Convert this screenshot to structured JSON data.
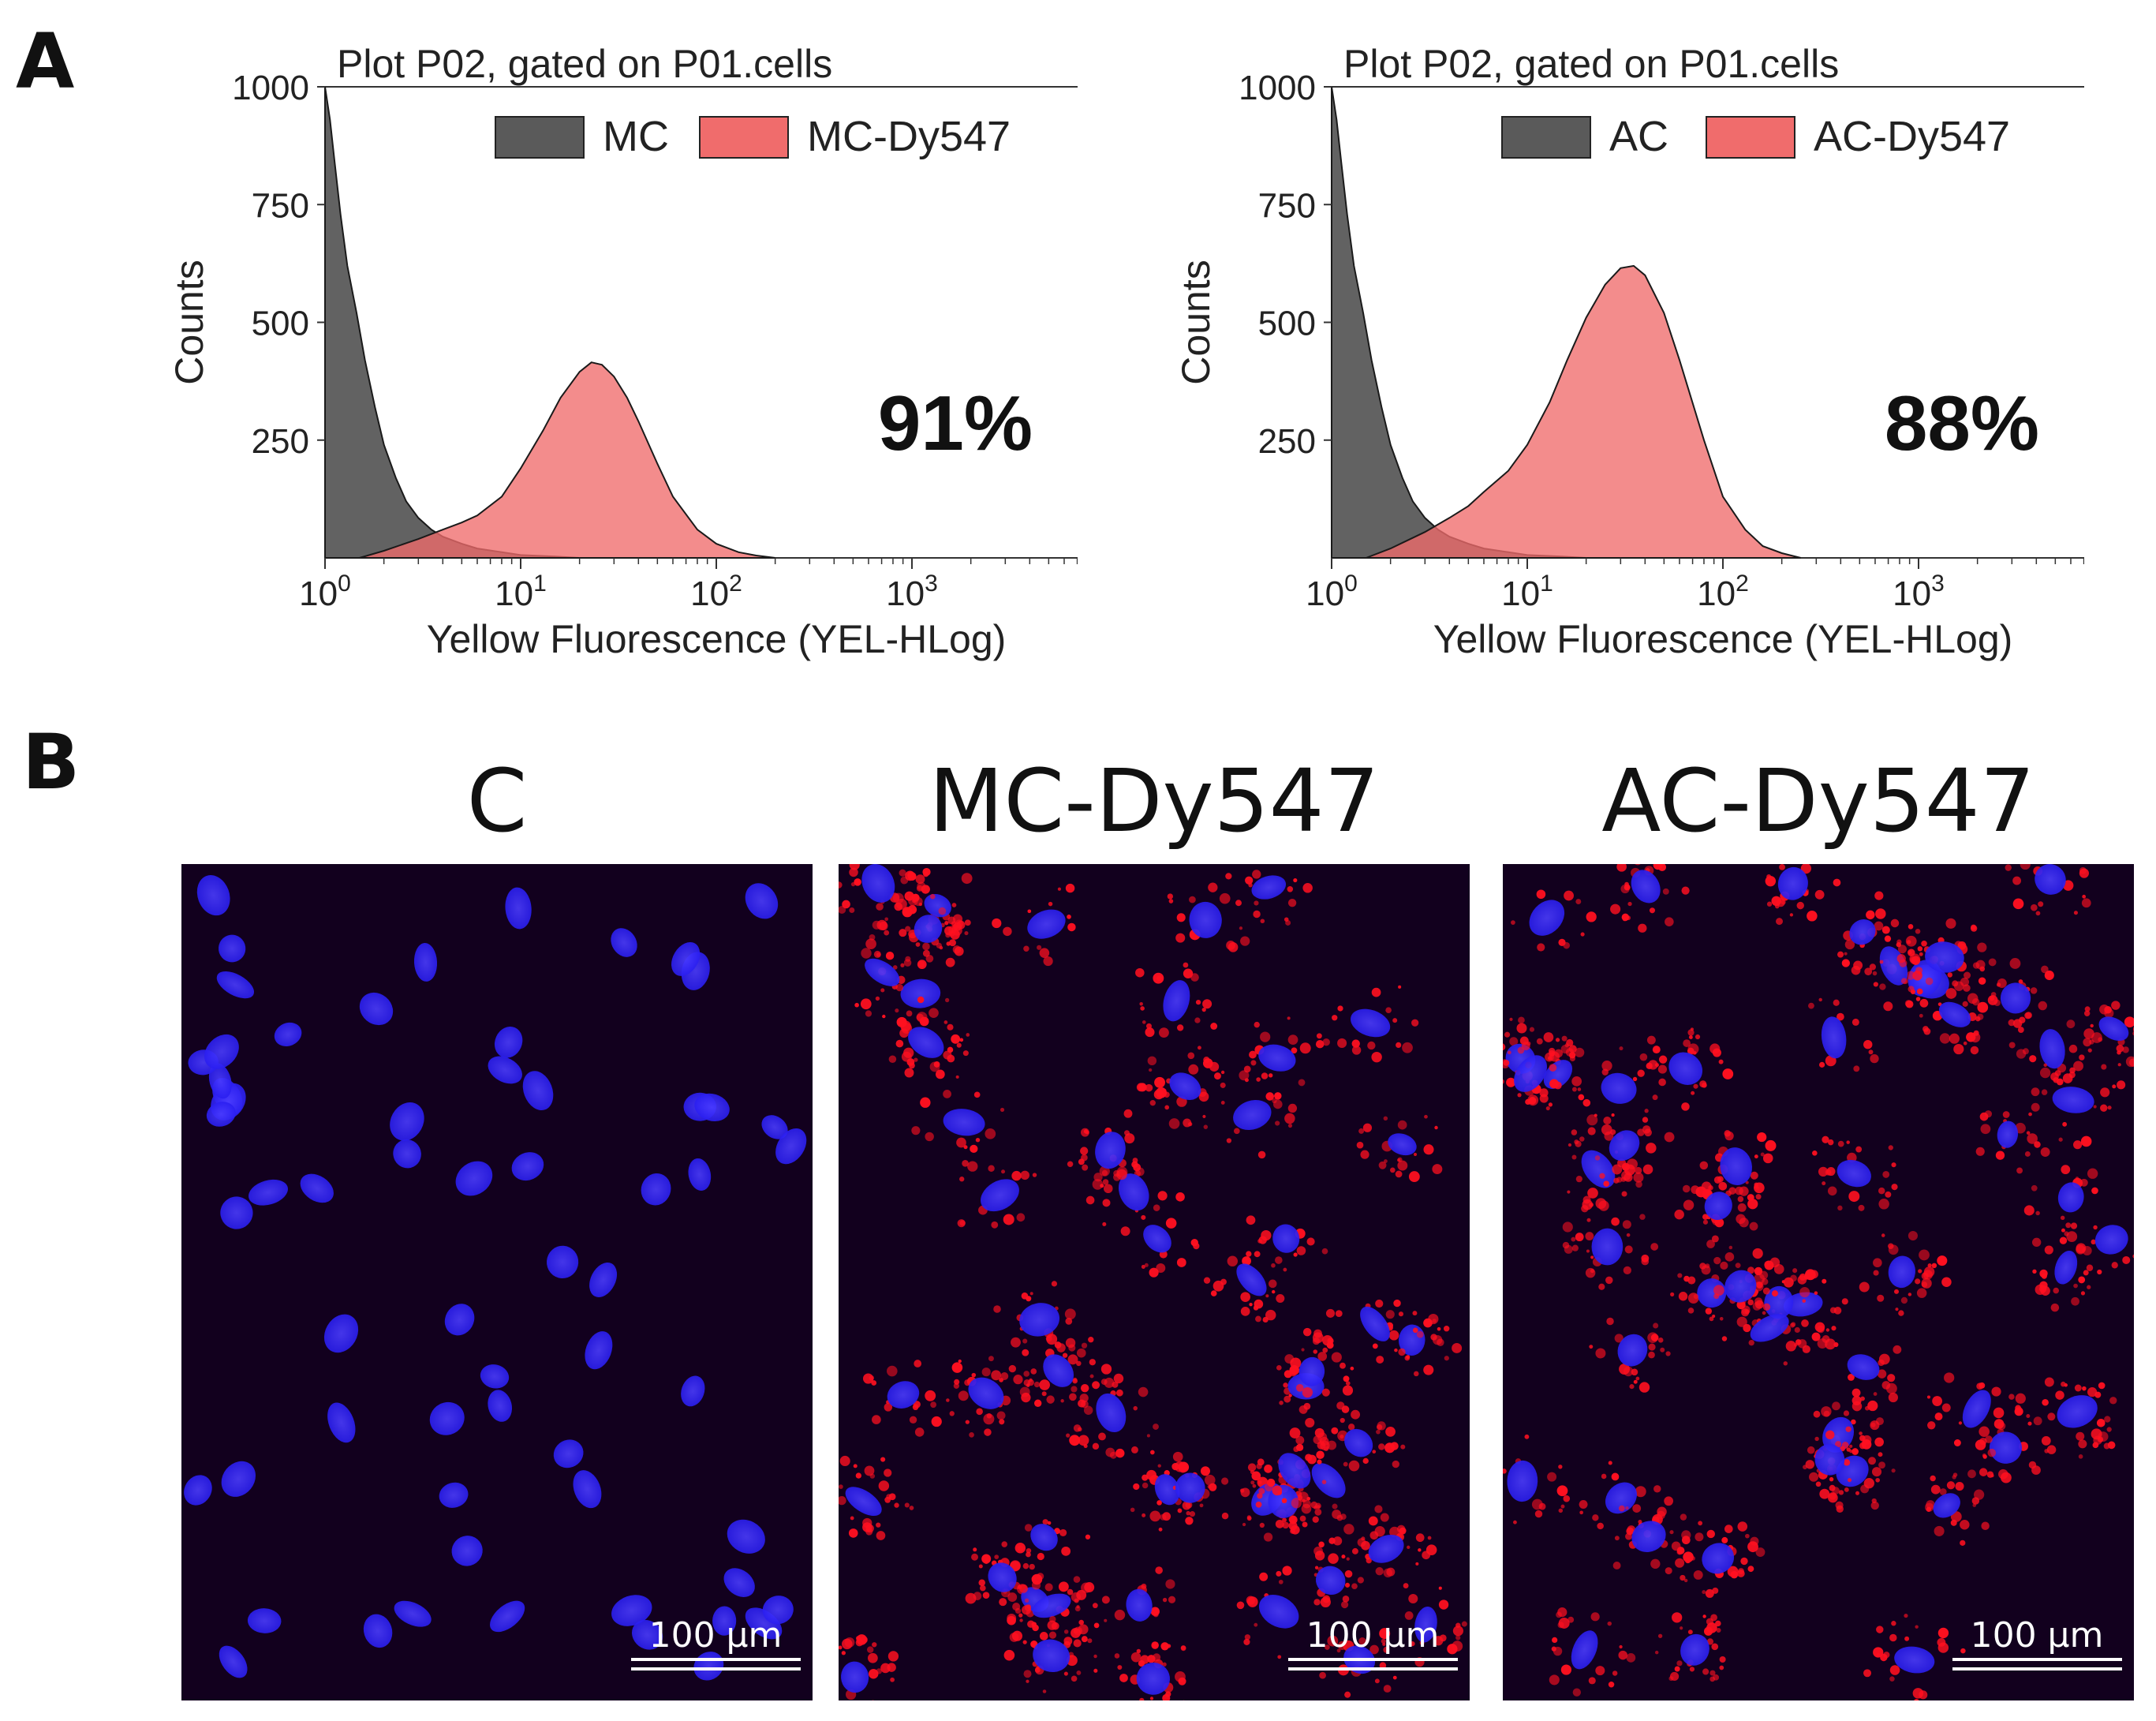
{
  "panels": {
    "a": "A",
    "b": "B"
  },
  "colors": {
    "control": "#5a5a5a",
    "stained": "#f06c6c",
    "outline": "#222222",
    "micro_bg": "#12001e",
    "nucleus": "#2a1ef0",
    "dye": "#ff1020"
  },
  "chart_data": [
    {
      "type": "area",
      "title": "Plot P02, gated on P01.cells",
      "xlabel": "Yellow Fluorescence (YEL-HLog)",
      "ylabel": "Counts",
      "x_scale": "log",
      "xlim": [
        1,
        10000
      ],
      "ylim": [
        0,
        1000
      ],
      "x_ticks": [
        1,
        10,
        100,
        1000,
        10000
      ],
      "x_tick_labels": [
        {
          "base": "10",
          "exp": "0"
        },
        {
          "base": "10",
          "exp": "1"
        },
        {
          "base": "10",
          "exp": "2"
        },
        {
          "base": "10",
          "exp": "3"
        },
        {
          "base": "10",
          "exp": "4"
        }
      ],
      "y_ticks": [
        250,
        500,
        750,
        1000
      ],
      "y_tick_labels": [
        "250",
        "500",
        "750",
        "1000"
      ],
      "legend": {
        "placement": "top-right",
        "entries": [
          "MC",
          "MC-Dy547"
        ]
      },
      "annotation": "91%",
      "series": [
        {
          "name": "MC",
          "color": "#5a5a5a",
          "x": [
            1.0,
            1.06,
            1.12,
            1.2,
            1.3,
            1.45,
            1.6,
            1.8,
            2.0,
            2.3,
            2.6,
            3.0,
            3.5,
            4.0,
            5.0,
            6.0,
            8.0,
            10.0,
            15.0,
            20.0
          ],
          "y": [
            1000,
            930,
            840,
            730,
            620,
            520,
            420,
            320,
            240,
            170,
            120,
            85,
            60,
            45,
            30,
            20,
            12,
            6,
            3,
            0
          ]
        },
        {
          "name": "MC-Dy547",
          "color": "#f06c6c",
          "x": [
            1.5,
            2.0,
            3.0,
            4.0,
            5.0,
            6.0,
            8.0,
            10.0,
            13.0,
            16.0,
            20.0,
            23.0,
            26.0,
            30.0,
            35.0,
            40.0,
            50.0,
            60.0,
            80.0,
            100.0,
            130.0,
            160.0,
            200.0
          ],
          "y": [
            0,
            15,
            40,
            60,
            75,
            90,
            130,
            190,
            270,
            340,
            395,
            415,
            410,
            385,
            340,
            290,
            200,
            130,
            60,
            30,
            12,
            5,
            0
          ]
        }
      ]
    },
    {
      "type": "area",
      "title": "Plot P02, gated on P01.cells",
      "xlabel": "Yellow Fluorescence (YEL-HLog)",
      "ylabel": "Counts",
      "x_scale": "log",
      "xlim": [
        1,
        10000
      ],
      "ylim": [
        0,
        1000
      ],
      "x_ticks": [
        1,
        10,
        100,
        1000,
        10000
      ],
      "x_tick_labels": [
        {
          "base": "10",
          "exp": "0"
        },
        {
          "base": "10",
          "exp": "1"
        },
        {
          "base": "10",
          "exp": "2"
        },
        {
          "base": "10",
          "exp": "3"
        },
        {
          "base": "10",
          "exp": "4"
        }
      ],
      "y_ticks": [
        250,
        500,
        750,
        1000
      ],
      "y_tick_labels": [
        "250",
        "500",
        "750",
        "1000"
      ],
      "legend": {
        "placement": "top-right",
        "entries": [
          "AC",
          "AC-Dy547"
        ]
      },
      "annotation": "88%",
      "series": [
        {
          "name": "AC",
          "color": "#5a5a5a",
          "x": [
            1.0,
            1.06,
            1.12,
            1.2,
            1.3,
            1.45,
            1.6,
            1.8,
            2.0,
            2.3,
            2.6,
            3.0,
            3.5,
            4.0,
            5.0,
            6.0,
            8.0,
            10.0,
            15.0,
            20.0
          ],
          "y": [
            1000,
            930,
            840,
            730,
            620,
            520,
            420,
            320,
            240,
            170,
            120,
            85,
            60,
            45,
            30,
            20,
            12,
            6,
            3,
            0
          ]
        },
        {
          "name": "AC-Dy547",
          "color": "#f06c6c",
          "x": [
            1.5,
            2.0,
            3.0,
            4.0,
            5.0,
            6.0,
            8.0,
            10.0,
            13.0,
            16.0,
            20.0,
            25.0,
            30.0,
            35.0,
            40.0,
            50.0,
            60.0,
            80.0,
            100.0,
            130.0,
            160.0,
            200.0,
            250.0
          ],
          "y": [
            0,
            20,
            55,
            85,
            110,
            140,
            185,
            240,
            330,
            420,
            510,
            580,
            615,
            620,
            600,
            520,
            420,
            250,
            130,
            60,
            25,
            10,
            0
          ]
        }
      ]
    }
  ],
  "micrographs": [
    {
      "title": "C",
      "scale_bar": "100 µm",
      "stain_density": 0
    },
    {
      "title": "MC-Dy547",
      "scale_bar": "100 µm",
      "stain_density": 1
    },
    {
      "title": "AC-Dy547",
      "scale_bar": "100 µm",
      "stain_density": 1
    }
  ]
}
